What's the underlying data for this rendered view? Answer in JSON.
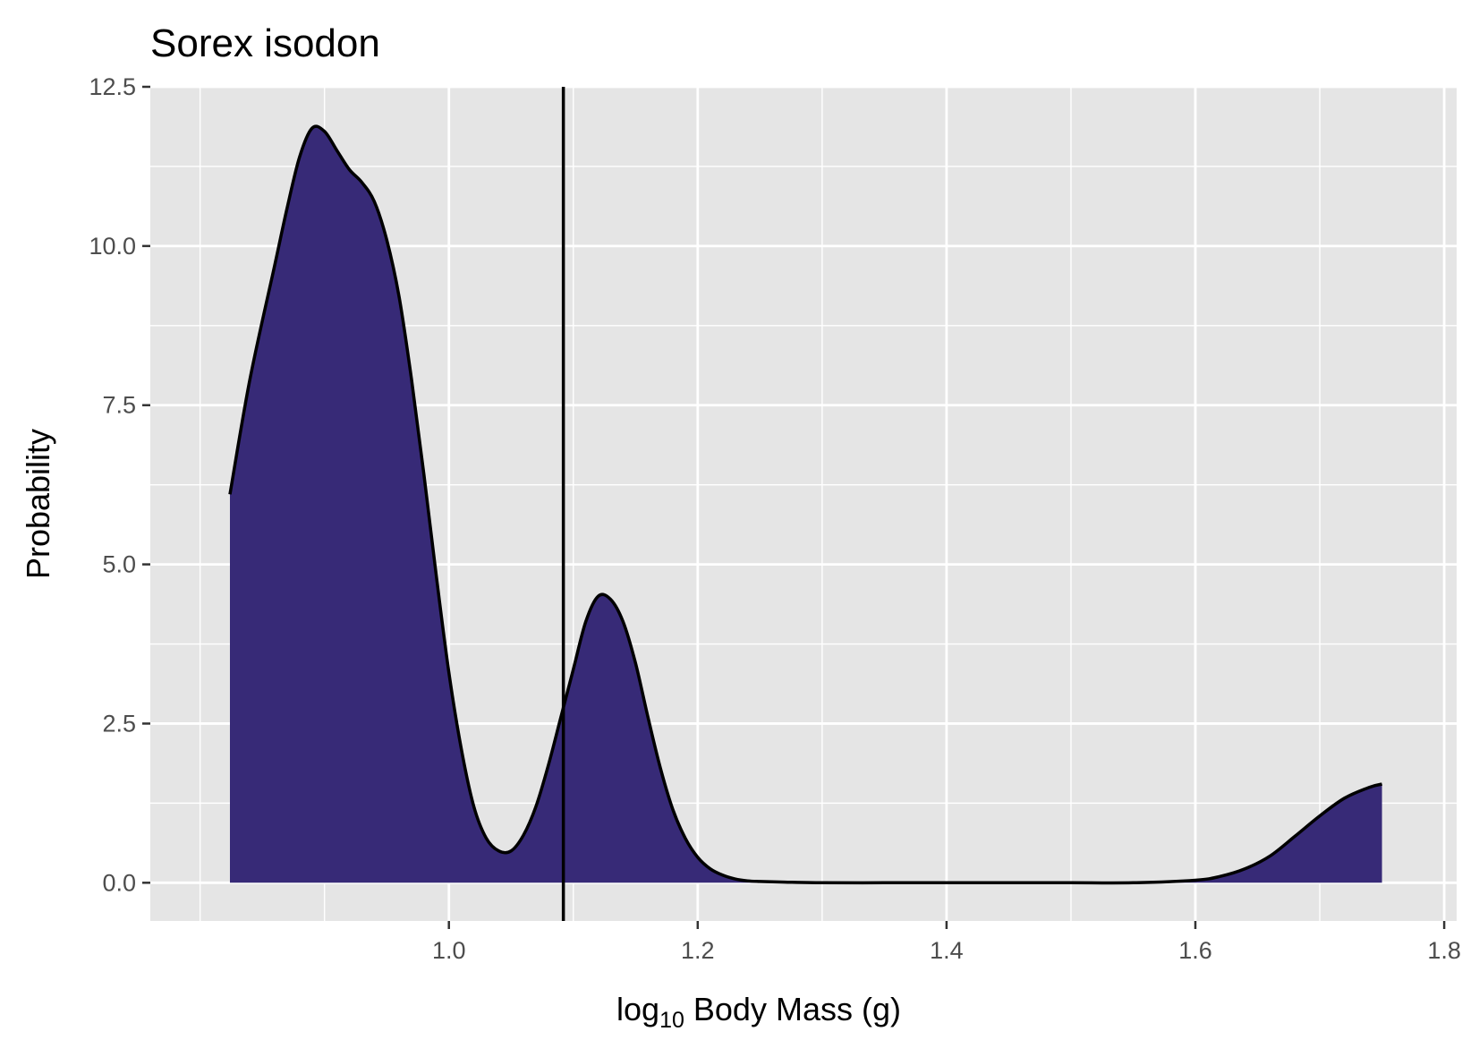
{
  "chart_data": {
    "type": "area",
    "title": "Sorex isodon",
    "xlabel": {
      "prefix": "log",
      "subscript": "10",
      "suffix": " Body Mass (g)"
    },
    "ylabel": "Probability",
    "xlim": [
      0.76,
      1.81
    ],
    "ylim": [
      -0.6,
      12.5
    ],
    "x_ticks": [
      1.0,
      1.2,
      1.4,
      1.6,
      1.8
    ],
    "x_tick_labels": [
      "1.0",
      "1.2",
      "1.4",
      "1.6",
      "1.8"
    ],
    "x_minor_ticks": [
      0.8,
      0.9,
      1.1,
      1.3,
      1.5,
      1.7
    ],
    "y_ticks": [
      0,
      2.5,
      5,
      7.5,
      10,
      12.5
    ],
    "y_tick_labels": [
      "0.0",
      "2.5",
      "5.0",
      "7.5",
      "10.0",
      "12.5"
    ],
    "y_minor_ticks": [
      1.25,
      3.75,
      6.25,
      8.75,
      11.25
    ],
    "grid": true,
    "fill_color": "#372a77",
    "line_color": "#000000",
    "panel_color": "#e5e5e5",
    "grid_color": "#ffffff",
    "vline_x": 1.092,
    "density": {
      "x": [
        0.824,
        0.84,
        0.86,
        0.87,
        0.88,
        0.89,
        0.9,
        0.91,
        0.92,
        0.93,
        0.94,
        0.95,
        0.96,
        0.97,
        0.98,
        0.99,
        1.0,
        1.01,
        1.02,
        1.03,
        1.04,
        1.05,
        1.06,
        1.07,
        1.08,
        1.09,
        1.1,
        1.11,
        1.12,
        1.13,
        1.14,
        1.15,
        1.16,
        1.17,
        1.18,
        1.19,
        1.2,
        1.21,
        1.22,
        1.23,
        1.24,
        1.25,
        1.27,
        1.3,
        1.35,
        1.4,
        1.45,
        1.5,
        1.55,
        1.6,
        1.62,
        1.64,
        1.66,
        1.68,
        1.7,
        1.72,
        1.74,
        1.75
      ],
      "y": [
        6.1,
        7.9,
        9.7,
        10.6,
        11.4,
        11.85,
        11.8,
        11.5,
        11.2,
        11.0,
        10.7,
        10.1,
        9.2,
        7.9,
        6.4,
        4.8,
        3.3,
        2.1,
        1.2,
        0.7,
        0.5,
        0.5,
        0.75,
        1.2,
        1.85,
        2.6,
        3.35,
        4.1,
        4.5,
        4.45,
        4.1,
        3.45,
        2.6,
        1.8,
        1.15,
        0.7,
        0.4,
        0.22,
        0.12,
        0.06,
        0.03,
        0.02,
        0.01,
        0.0,
        0.0,
        0.0,
        0.0,
        0.0,
        0.0,
        0.04,
        0.1,
        0.22,
        0.42,
        0.73,
        1.05,
        1.33,
        1.5,
        1.55
      ]
    }
  }
}
